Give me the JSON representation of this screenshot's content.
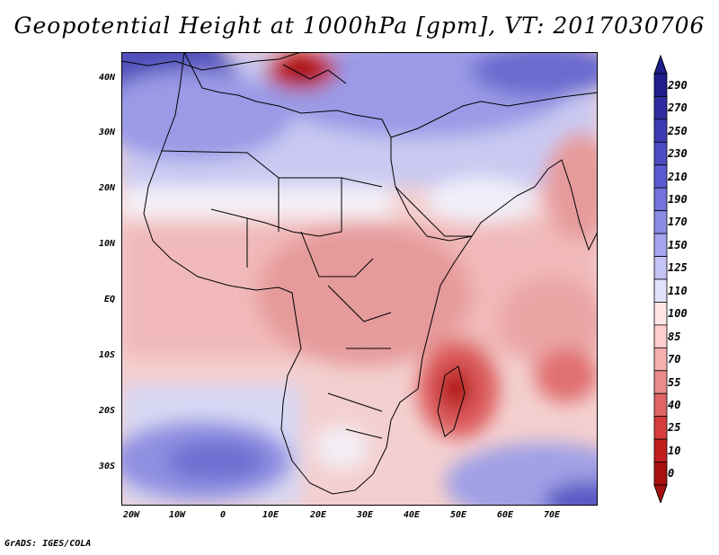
{
  "title": "Geopotential Height at 1000hPa [gpm], VT: 2017030706",
  "credit": "GrADS: IGES/COLA",
  "lat_labels": [
    "40N",
    "30N",
    "20N",
    "10N",
    "EQ",
    "10S",
    "20S",
    "30S"
  ],
  "lon_labels": [
    "20W",
    "10W",
    "0",
    "10E",
    "20E",
    "30E",
    "40E",
    "50E",
    "60E",
    "70E"
  ],
  "colorbar": {
    "levels": [
      "290",
      "270",
      "250",
      "230",
      "210",
      "190",
      "170",
      "150",
      "125",
      "110",
      "100",
      "85",
      "70",
      "55",
      "40",
      "25",
      "10",
      "0"
    ],
    "colors": [
      "#1e1e8c",
      "#2d2da0",
      "#3c3cb4",
      "#4b4bc3",
      "#5a5ad2",
      "#7373dc",
      "#8c8ce6",
      "#a5a5f0",
      "#c3c3f5",
      "#e1e1fa",
      "#ffe6e6",
      "#ffcdcd",
      "#f5afaf",
      "#eb8c8c",
      "#e16464",
      "#d73c3c",
      "#c31e1e",
      "#aa0f0f"
    ]
  },
  "colors": {
    "deep_blue": "#4646b4",
    "mid_blue": "#9696e6",
    "light_blue": "#d2d2f5",
    "white": "#ffffff",
    "light_red": "#f5c3c3",
    "mid_red": "#eb9b9b",
    "deep_red": "#c82828"
  }
}
